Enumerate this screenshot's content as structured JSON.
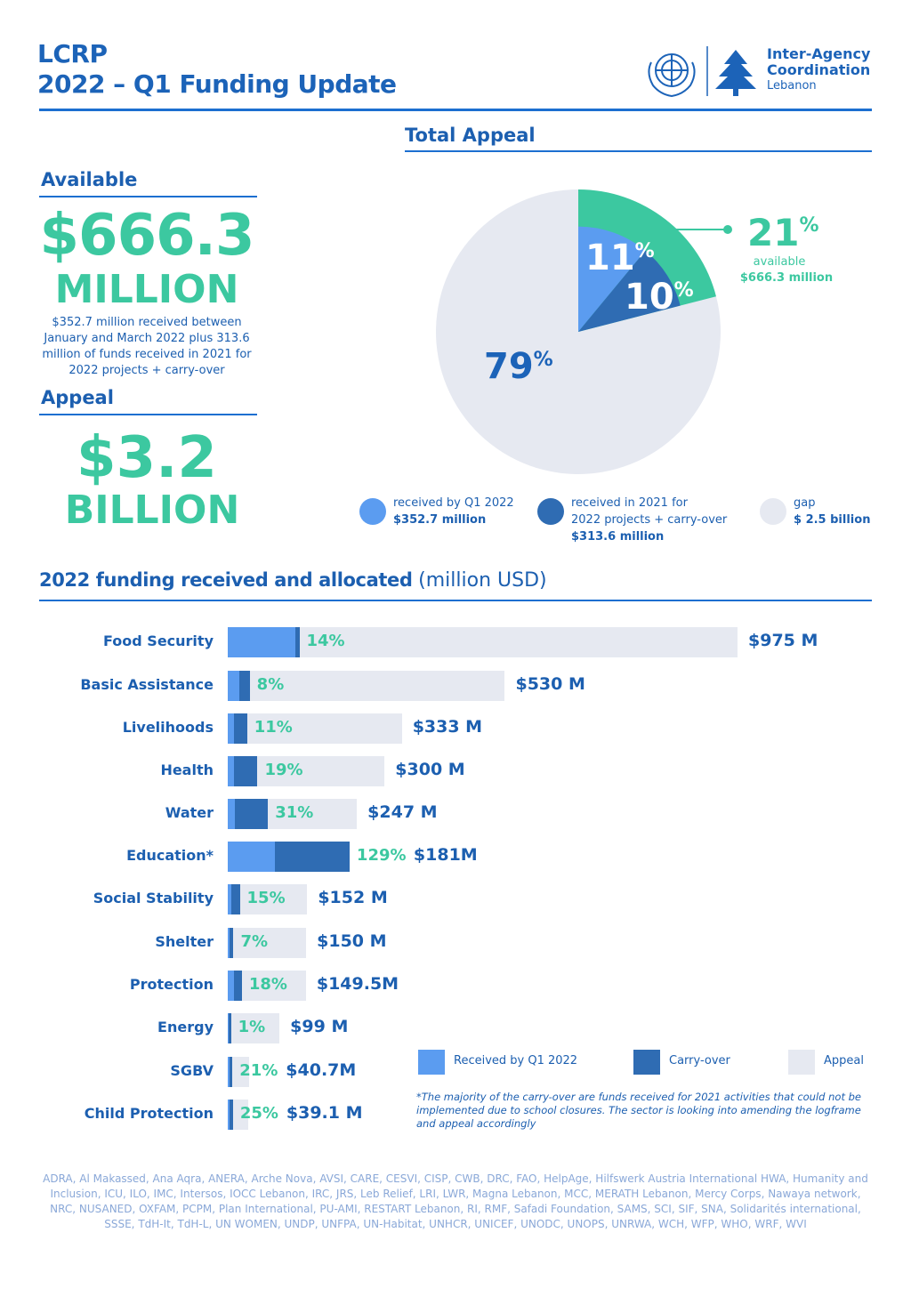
{
  "header": {
    "line1": "LCRP",
    "line2": "2022 – Q1 Funding Update",
    "org_name_1": "Inter-Agency",
    "org_name_2": "Coordination",
    "org_country": "Lebanon",
    "logos": [
      "un-emblem-icon",
      "cedar-tree-icon"
    ]
  },
  "available": {
    "heading": "Available",
    "amount": "$666.3",
    "unit": "MILLION",
    "description": "$352.7 million received between January and March 2022 plus 313.6 million of funds received in 2021 for 2022 projects + carry-over"
  },
  "appeal": {
    "heading": "Appeal",
    "amount": "$3.2",
    "unit": "BILLION"
  },
  "colors": {
    "received": "#5b9cf0",
    "carryover": "#2f6cb3",
    "appeal": "#e6e9f1",
    "available": "#3cc8a0",
    "text": "#1c5fb0"
  },
  "chart_data": [
    {
      "type": "pie",
      "title": "Total Appeal",
      "slices": [
        {
          "name": "received by Q1 2022",
          "value": 11,
          "amount": "$352.7 million",
          "label": "11",
          "color": "#5b9cf0"
        },
        {
          "name": "received in 2021 for 2022 projects + carry-over",
          "value": 10,
          "amount": "$313.6 million",
          "label": "10",
          "color": "#2f6cb3"
        },
        {
          "name": "gap",
          "value": 79,
          "amount": "$ 2.5 billion",
          "label": "79",
          "color": "#e6e9f1"
        }
      ],
      "callout": {
        "value": "21",
        "text": "available",
        "amount": "$666.3 million"
      },
      "legend": [
        {
          "line1": "received by Q1 2022",
          "line2": "",
          "amount": "$352.7 million",
          "color": "#5b9cf0"
        },
        {
          "line1": "received in 2021 for",
          "line2": "2022 projects + carry-over",
          "amount": "$313.6 million",
          "color": "#2f6cb3"
        },
        {
          "line1": "gap",
          "line2": "",
          "amount": "$ 2.5 billion",
          "color": "#e6e9f1"
        }
      ]
    },
    {
      "type": "bar",
      "title": "2022 funding received and allocated",
      "subtitle": "(million USD)",
      "categories": [
        "Food Security",
        "Basic Assistance",
        "Livelihoods",
        "Health",
        "Water",
        "Education*",
        "Social Stability",
        "Shelter",
        "Protection",
        "Energy",
        "SGBV",
        "Child Protection"
      ],
      "series": [
        {
          "name": "Received by Q1 2022",
          "color": "#5b9cf0",
          "values": [
            130,
            22,
            12,
            12,
            14,
            91,
            6,
            3,
            12,
            1,
            3,
            3
          ]
        },
        {
          "name": "Carry-over",
          "color": "#2f6cb3",
          "values": [
            7,
            20,
            25,
            45,
            63,
            142,
            17,
            8,
            15,
            0,
            6,
            7
          ]
        },
        {
          "name": "Appeal",
          "color": "#e6e9f1",
          "values": [
            975,
            530,
            333,
            300,
            247,
            181,
            152,
            150,
            149.5,
            99,
            40.7,
            39.1
          ]
        }
      ],
      "percent_labels": [
        "14%",
        "8%",
        "11%",
        "19%",
        "31%",
        "129%",
        "15%",
        "7%",
        "18%",
        "1%",
        "21%",
        "25%"
      ],
      "total_labels": [
        "$975 M",
        "$530 M",
        "$333 M",
        "$300 M",
        "$247 M",
        "$181M",
        "$152 M",
        "$150 M",
        "$149.5M",
        "$99 M",
        "$40.7M",
        "$39.1 M"
      ],
      "legend_placement": "bottom-right"
    }
  ],
  "note": "*The majority of the carry-over are funds received for 2021 activities that could not be implemented due to school closures. The sector is looking into amending the logframe and appeal accordingly",
  "footer": "ADRA, Al Makassed, Ana Aqra, ANERA, Arche Nova, AVSI, CARE, CESVI, CISP, CWB, DRC, FAO, HelpAge, Hilfswerk Austria International HWA, Humanity and Inclusion, ICU, ILO, IMC, Intersos, IOCC Lebanon, IRC, JRS, Leb Relief, LRI, LWR, Magna Lebanon, MCC, MERATH Lebanon, Mercy Corps, Nawaya network, NRC, NUSANED, OXFAM, PCPM, Plan International, PU-AMI, RESTART Lebanon, RI, RMF, Safadi Foundation, SAMS, SCI, SIF, SNA, Solidarités international, SSSE, TdH-It, TdH-L, UN WOMEN, UNDP, UNFPA, UN-Habitat, UNHCR, UNICEF, UNODC, UNOPS, UNRWA, WCH, WFP, WHO, WRF, WVI"
}
